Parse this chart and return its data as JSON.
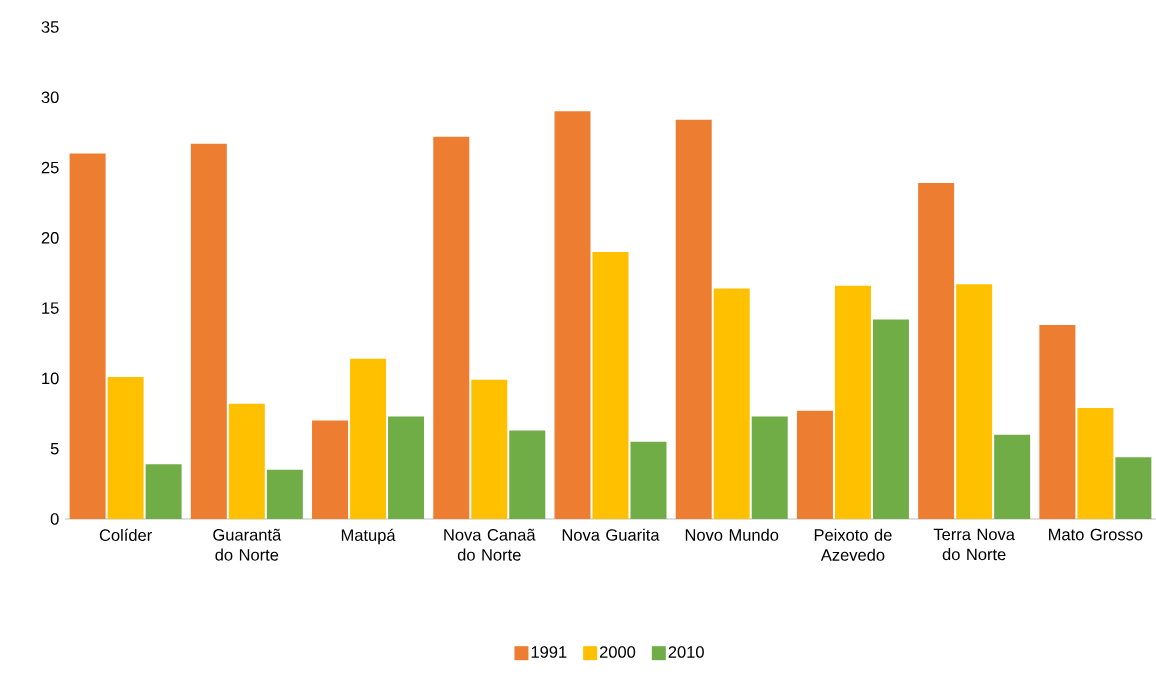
{
  "chart_data": {
    "type": "bar",
    "categories": [
      "Colíder",
      "Guarantã do Norte",
      "Matupá",
      "Nova Canaã do Norte",
      "Nova Guarita",
      "Novo Mundo",
      "Peixoto de Azevedo",
      "Terra Nova do Norte",
      "Mato Grosso"
    ],
    "series": [
      {
        "name": "1991",
        "color": "#ed7d31",
        "values": [
          26.0,
          26.7,
          7.0,
          27.2,
          29.0,
          28.4,
          7.7,
          23.9,
          13.8
        ]
      },
      {
        "name": "2000",
        "color": "#ffc000",
        "values": [
          10.1,
          8.2,
          11.4,
          9.9,
          19.0,
          16.4,
          16.6,
          16.7,
          7.9
        ]
      },
      {
        "name": "2010",
        "color": "#70ad47",
        "values": [
          3.9,
          3.5,
          7.3,
          6.3,
          5.5,
          7.3,
          14.2,
          6.0,
          4.4
        ]
      }
    ],
    "ylim": [
      0,
      35
    ],
    "yticks": [
      0,
      5,
      10,
      15,
      20,
      25,
      30,
      35
    ],
    "grid": false,
    "legend": "bottom"
  }
}
